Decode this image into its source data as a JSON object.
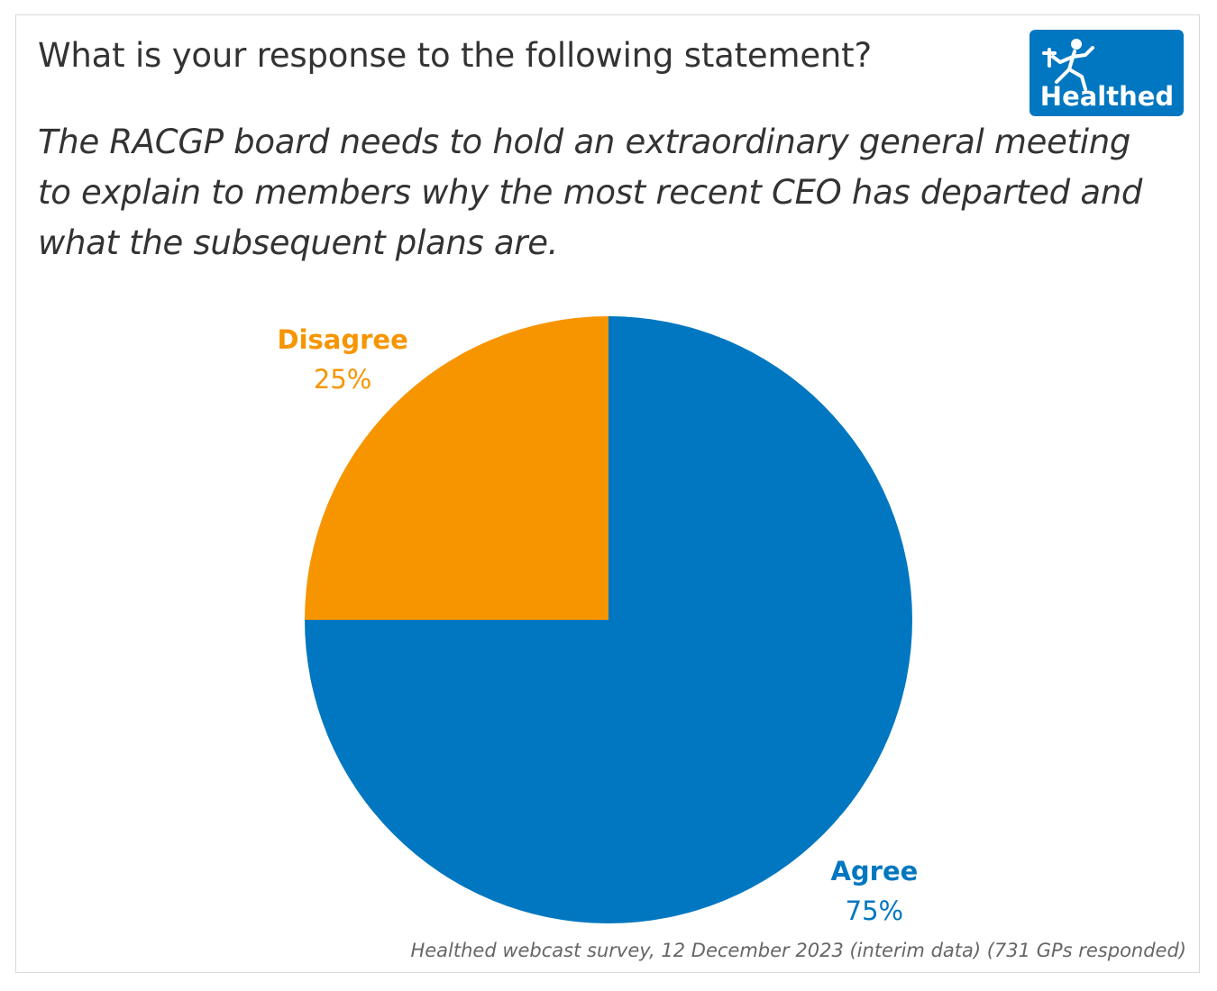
{
  "question": "What is your response to the following statement?",
  "statement": "The RACGP board needs to hold an extraordinary general meeting to explain to members why the most recent CEO has departed and what the subsequent plans are.",
  "logo": {
    "text": "Healthed",
    "icon": "runner-logo-icon",
    "color": "#0077c0"
  },
  "footer": "Healthed webcast survey, 12 December 2023 (interim data) (731 GPs responded)",
  "chart_data": {
    "type": "pie",
    "title": "What is your response to the following statement?",
    "slices": [
      {
        "label": "Agree",
        "value": 75,
        "value_label": "75%",
        "color": "#0077c0"
      },
      {
        "label": "Disagree",
        "value": 25,
        "value_label": "25%",
        "color": "#f79500"
      }
    ]
  }
}
